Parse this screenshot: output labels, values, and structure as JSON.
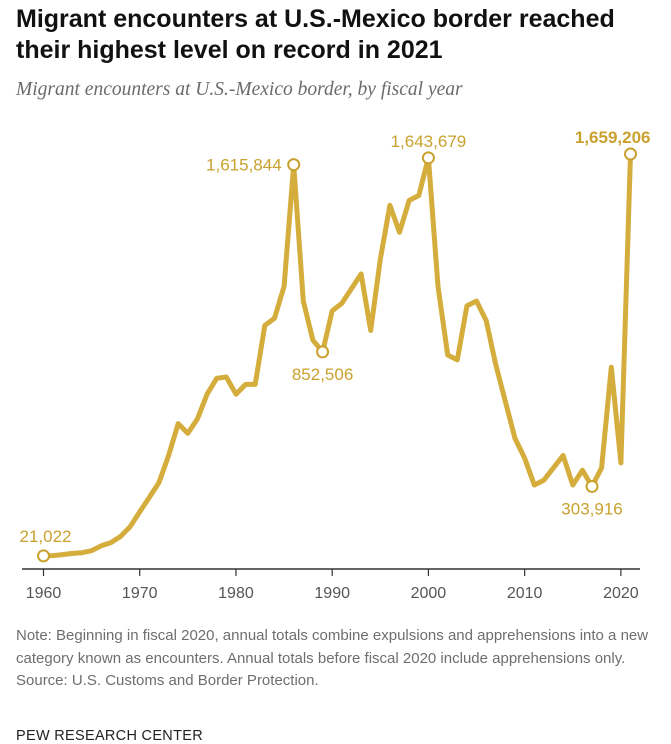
{
  "title": "Migrant encounters at U.S.-Mexico border reached their highest level on record in 2021",
  "subtitle": "Migrant encounters at U.S.-Mexico border, by fiscal year",
  "note": "Note: Beginning in fiscal 2020, annual totals combine expulsions and apprehensions into a new category known as encounters. Annual totals before fiscal 2020 include apprehensions only.",
  "source": "Source: U.S. Customs and Border Protection.",
  "brand": "PEW RESEARCH CENTER",
  "colors": {
    "line": "#d4ad3d",
    "label": "#c9a12e",
    "axis": "#333333",
    "tick_text": "#555555"
  },
  "chart_data": {
    "type": "line",
    "x": [
      1960,
      1961,
      1962,
      1963,
      1964,
      1965,
      1966,
      1967,
      1968,
      1969,
      1970,
      1971,
      1972,
      1973,
      1974,
      1975,
      1976,
      1977,
      1978,
      1979,
      1980,
      1981,
      1982,
      1983,
      1984,
      1985,
      1986,
      1987,
      1988,
      1989,
      1990,
      1991,
      1992,
      1993,
      1994,
      1995,
      1996,
      1997,
      1998,
      1999,
      2000,
      2001,
      2002,
      2003,
      2004,
      2005,
      2006,
      2007,
      2008,
      2009,
      2010,
      2011,
      2012,
      2013,
      2014,
      2015,
      2016,
      2017,
      2018,
      2019,
      2020,
      2021
    ],
    "series": [
      {
        "values": [
          21022,
          22000,
          26000,
          31000,
          34000,
          42000,
          62000,
          75000,
          100000,
          140000,
          200000,
          260000,
          320000,
          430000,
          560000,
          520000,
          580000,
          680000,
          745000,
          750000,
          680000,
          720000,
          720000,
          960000,
          990000,
          1120000,
          1615844,
          1060000,
          900000,
          852506,
          1020000,
          1050000,
          1110000,
          1170000,
          940000,
          1230000,
          1450000,
          1340000,
          1470000,
          1490000,
          1643679,
          1120000,
          840000,
          820000,
          1040000,
          1060000,
          980000,
          800000,
          650000,
          500000,
          420000,
          310000,
          330000,
          380000,
          430000,
          310000,
          370000,
          303916,
          380000,
          790000,
          400000,
          1659206
        ]
      }
    ],
    "xlim": [
      1960,
      2021
    ],
    "ylim": [
      0,
      1700000
    ],
    "x_ticks": [
      1960,
      1970,
      1980,
      1990,
      2000,
      2010,
      2020
    ],
    "grid": false,
    "annotations": [
      {
        "x": 1960,
        "y": 21022,
        "text": "21,022",
        "position": "above",
        "bold": false
      },
      {
        "x": 1986,
        "y": 1615844,
        "text": "1,615,844",
        "position": "left",
        "bold": false
      },
      {
        "x": 1989,
        "y": 852506,
        "text": "852,506",
        "position": "below",
        "bold": false
      },
      {
        "x": 2000,
        "y": 1643679,
        "text": "1,643,679",
        "position": "above",
        "bold": false
      },
      {
        "x": 2017,
        "y": 303916,
        "text": "303,916",
        "position": "below",
        "bold": false
      },
      {
        "x": 2021,
        "y": 1659206,
        "text": "1,659,206",
        "position": "above",
        "bold": true
      }
    ]
  }
}
